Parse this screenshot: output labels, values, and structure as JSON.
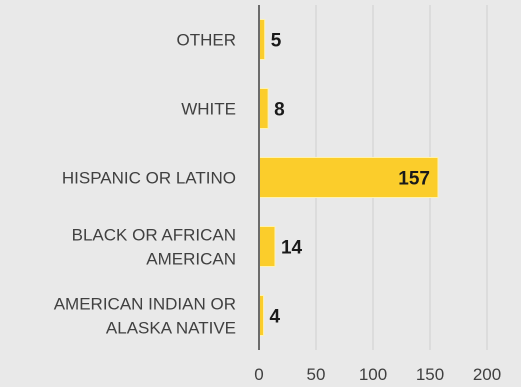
{
  "chart_data": {
    "type": "bar",
    "orientation": "horizontal",
    "categories": [
      [
        "OTHER"
      ],
      [
        "WHITE"
      ],
      [
        "HISPANIC OR LATINO"
      ],
      [
        "BLACK OR AFRICAN",
        "AMERICAN"
      ],
      [
        "AMERICAN INDIAN OR",
        "ALASKA NATIVE"
      ]
    ],
    "values": [
      5,
      8,
      157,
      14,
      4
    ],
    "xlim": [
      0,
      200
    ],
    "xticks": [
      "0",
      "50",
      "100",
      "150",
      "200"
    ],
    "grid": "vertical",
    "legend": "none",
    "colors": {
      "background": "#e9e9e9",
      "bar_fill": "#fbcd2b",
      "bar_stroke": "#fff3b0",
      "grid": "#cfcfcf",
      "axis": "#6b6b6b",
      "label": "#404040",
      "data_label": "#1a1a1a"
    }
  }
}
